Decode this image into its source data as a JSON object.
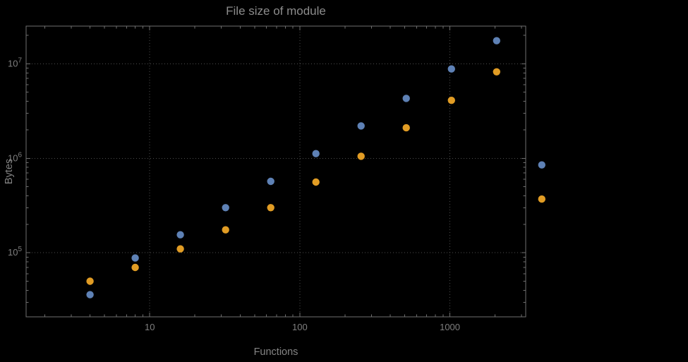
{
  "chart_data": {
    "type": "scatter",
    "title": "File size of module",
    "xlabel": "Functions",
    "ylabel": "Bytes",
    "x_scale": "log",
    "y_scale": "log",
    "grid": "dotted",
    "legend": "none",
    "xlim": [
      1.5,
      3200
    ],
    "ylim": [
      21000,
      25000000
    ],
    "xticks": [
      10,
      100,
      1000
    ],
    "xtick_labels": [
      "10",
      "100",
      "1000"
    ],
    "yticks": [
      100000,
      1000000,
      10000000
    ],
    "ytick_labels": [
      "10^5",
      "10^6",
      "10^7"
    ],
    "x": [
      4,
      8,
      16,
      32,
      64,
      128,
      256,
      512,
      1024,
      2048,
      4096
    ],
    "series": [
      {
        "name": "series-blue",
        "color": "#5e81b5",
        "values": [
          36000,
          88000,
          155000,
          300000,
          570000,
          1120000,
          2200000,
          4300000,
          8800000,
          17500000,
          850000
        ]
      },
      {
        "name": "series-orange",
        "color": "#e19c24",
        "values": [
          50000,
          70000,
          110000,
          175000,
          300000,
          560000,
          1050000,
          2100000,
          4100000,
          8200000,
          370000
        ]
      }
    ]
  }
}
